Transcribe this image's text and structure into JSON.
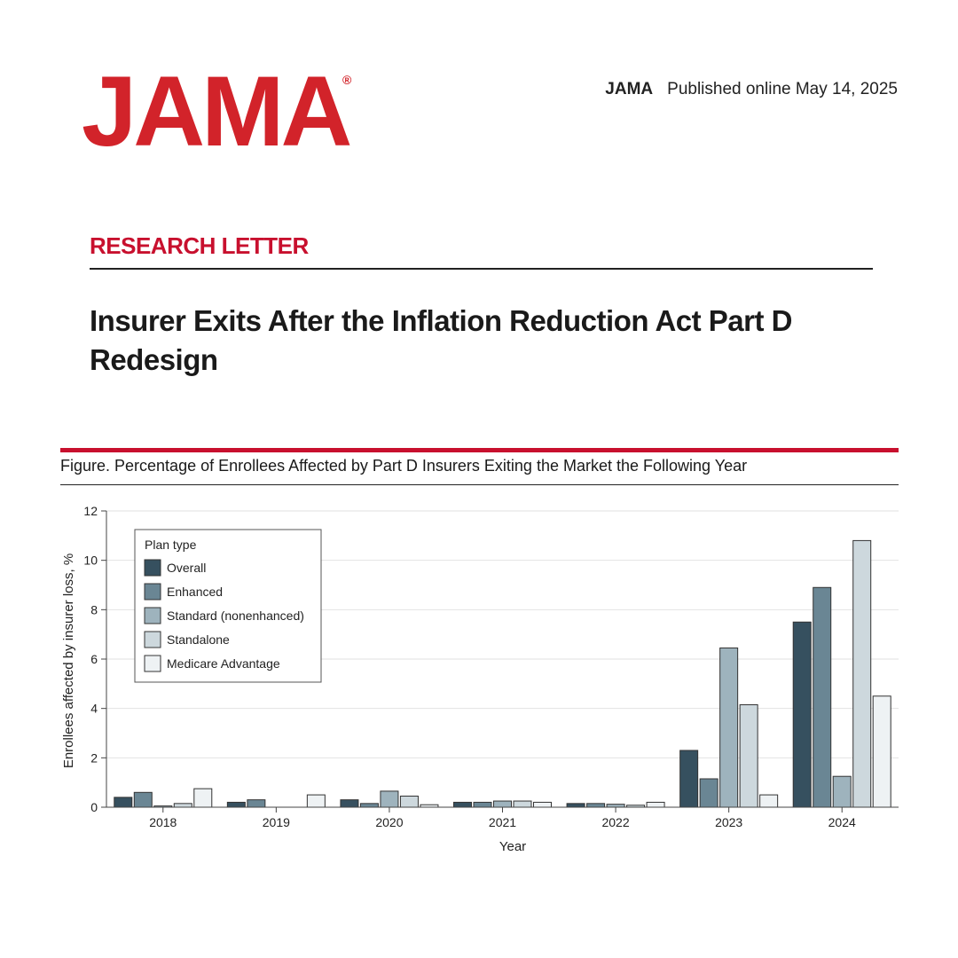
{
  "header": {
    "logo": "JAMA",
    "logo_mark": "®",
    "journal": "JAMA",
    "published": "Published online May  14, 2025"
  },
  "article": {
    "section": "RESEARCH LETTER",
    "title": "Insurer Exits After the Inflation Reduction Act Part D Redesign"
  },
  "figure": {
    "caption": "Figure. Percentage of Enrollees Affected by Part D Insurers Exiting the Market the Following Year"
  },
  "colors": {
    "brand_red": "#c8102e",
    "series": [
      "#36505f",
      "#6a8694",
      "#9eb3bd",
      "#cdd8dd",
      "#eef2f4"
    ]
  },
  "chart_data": {
    "type": "bar",
    "title": "",
    "xlabel": "Year",
    "ylabel": "Enrollees affected by insurer loss, %",
    "ylim": [
      0,
      12
    ],
    "yticks": [
      0,
      2,
      4,
      6,
      8,
      10,
      12
    ],
    "grid": true,
    "legend_title": "Plan type",
    "legend_position": "top-left",
    "categories": [
      "2018",
      "2019",
      "2020",
      "2021",
      "2022",
      "2023",
      "2024"
    ],
    "series": [
      {
        "name": "Overall",
        "values": [
          0.4,
          0.2,
          0.3,
          0.2,
          0.15,
          2.3,
          7.5
        ]
      },
      {
        "name": "Enhanced",
        "values": [
          0.6,
          0.3,
          0.15,
          0.2,
          0.15,
          1.15,
          8.9
        ]
      },
      {
        "name": "Standard (nonenhanced)",
        "values": [
          0.05,
          0,
          0.65,
          0.25,
          0.12,
          6.45,
          1.25
        ]
      },
      {
        "name": "Standalone",
        "values": [
          0.15,
          0,
          0.45,
          0.25,
          0.08,
          4.15,
          10.8
        ]
      },
      {
        "name": "Medicare Advantage",
        "values": [
          0.75,
          0.5,
          0.1,
          0.2,
          0.2,
          0.5,
          4.5
        ]
      }
    ]
  }
}
